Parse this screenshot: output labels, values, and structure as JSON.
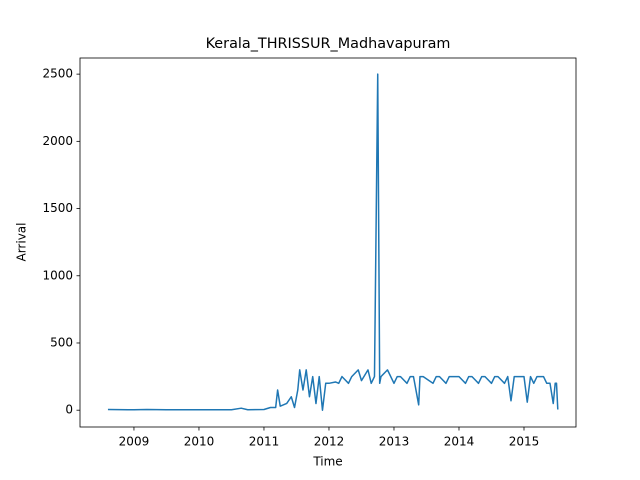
{
  "chart_data": {
    "type": "line",
    "title": "Kerala_THRISSUR_Madhavapuram",
    "xlabel": "Time",
    "ylabel": "Arrival",
    "x": [
      2008.6,
      2009.0,
      2009.2,
      2009.5,
      2010.0,
      2010.5,
      2010.65,
      2010.75,
      2011.0,
      2011.1,
      2011.18,
      2011.21,
      2011.25,
      2011.35,
      2011.42,
      2011.47,
      2011.52,
      2011.55,
      2011.6,
      2011.65,
      2011.7,
      2011.75,
      2011.8,
      2011.85,
      2011.9,
      2011.95,
      2012.0,
      2012.1,
      2012.15,
      2012.2,
      2012.3,
      2012.35,
      2012.45,
      2012.5,
      2012.55,
      2012.6,
      2012.65,
      2012.7,
      2012.75,
      2012.78,
      2012.8,
      2012.9,
      2013.0,
      2013.05,
      2013.1,
      2013.2,
      2013.25,
      2013.3,
      2013.38,
      2013.4,
      2013.45,
      2013.6,
      2013.65,
      2013.7,
      2013.8,
      2013.85,
      2013.9,
      2014.0,
      2014.1,
      2014.15,
      2014.2,
      2014.3,
      2014.35,
      2014.4,
      2014.5,
      2014.55,
      2014.6,
      2014.7,
      2014.75,
      2014.8,
      2014.85,
      2014.9,
      2015.0,
      2015.05,
      2015.1,
      2015.15,
      2015.2,
      2015.3,
      2015.35,
      2015.4,
      2015.45,
      2015.48,
      2015.5,
      2015.52
    ],
    "series": [
      {
        "name": "Arrival",
        "color": "#1f77b4",
        "values": [
          5,
          3,
          5,
          3,
          3,
          3,
          15,
          3,
          5,
          20,
          20,
          150,
          30,
          50,
          100,
          20,
          150,
          300,
          150,
          300,
          100,
          250,
          50,
          250,
          0,
          200,
          200,
          210,
          200,
          250,
          200,
          250,
          300,
          220,
          260,
          300,
          200,
          250,
          2500,
          200,
          250,
          300,
          200,
          250,
          250,
          200,
          250,
          250,
          40,
          250,
          250,
          200,
          250,
          250,
          200,
          250,
          250,
          250,
          200,
          250,
          250,
          200,
          250,
          250,
          200,
          250,
          250,
          200,
          250,
          70,
          250,
          250,
          250,
          60,
          250,
          200,
          250,
          250,
          200,
          200,
          50,
          200,
          200,
          5
        ]
      }
    ],
    "xlim": [
      2008.17,
      2015.8
    ],
    "xticks": [
      2009,
      2010,
      2011,
      2012,
      2013,
      2014,
      2015
    ],
    "ylim": [
      -125,
      2620
    ],
    "yticks": [
      0,
      500,
      1000,
      1500,
      2000,
      2500
    ]
  }
}
